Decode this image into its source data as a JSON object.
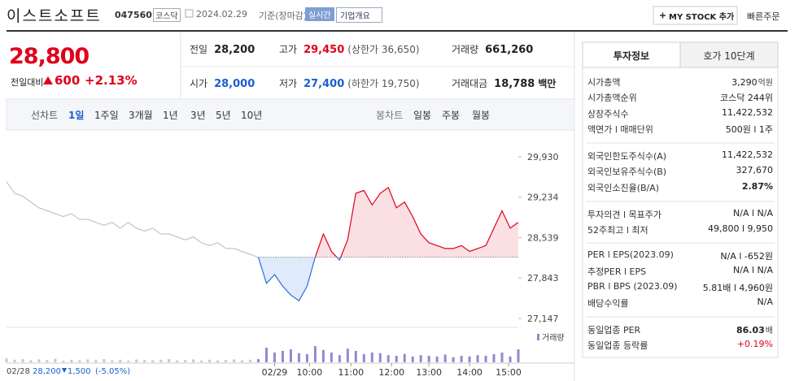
{
  "header": {
    "name": "이스트소프트",
    "code": "047560",
    "market": "코스닥",
    "date": "2024.02.29",
    "date_note": "기준(장마감)",
    "realtime": "실시간",
    "company_button": "기업개요",
    "mystock_button": "MY STOCK 추가",
    "quick_order": "빠른주문"
  },
  "price": {
    "current": "28,800",
    "change_label": "전일대비",
    "change": "600",
    "rate": "+2.13%"
  },
  "summary": [
    [
      {
        "label": "전일",
        "value": "28,200",
        "color": "#222"
      },
      {
        "label": "고가",
        "value": "29,450",
        "note": "(상한가 36,650)",
        "color": "#e0001b"
      },
      {
        "label": "거래량",
        "value": "661,260",
        "color": "#222"
      }
    ],
    [
      {
        "label": "시가",
        "value": "28,000",
        "color": "#1a5fd1"
      },
      {
        "label": "저가",
        "value": "27,400",
        "note": "(하한가 19,750)",
        "color": "#1a5fd1"
      },
      {
        "label": "거래대금",
        "value": "18,788",
        "unit": "백만",
        "color": "#222"
      }
    ]
  ],
  "tabs": {
    "line_label": "선차트",
    "line_periods": [
      "1일",
      "1주일",
      "3개월",
      "1년",
      "3년",
      "5년",
      "10년"
    ],
    "candle_label": "봉차트",
    "candle_periods": [
      "일봉",
      "주봉",
      "월봉"
    ]
  },
  "chart_data": {
    "type": "line",
    "ylim": [
      27035,
      30110
    ],
    "yticks": [
      {
        "value": 29930,
        "label": "29,930"
      },
      {
        "value": 29234,
        "label": "29,234"
      },
      {
        "value": 28539,
        "label": "28,539"
      },
      {
        "value": 27843,
        "label": "27,843"
      },
      {
        "value": 27147,
        "label": "27,147"
      }
    ],
    "xlim": [
      0,
      63
    ],
    "xticks": [
      {
        "value": 33,
        "label": "02/29"
      },
      {
        "value": 37.3,
        "label": "10:00"
      },
      {
        "value": 42.4,
        "label": "11:00"
      },
      {
        "value": 47.4,
        "label": "12:00"
      },
      {
        "value": 52,
        "label": "13:00"
      },
      {
        "value": 57,
        "label": "14:00"
      },
      {
        "value": 61.8,
        "label": "15:00"
      }
    ],
    "baseline": 28200,
    "series": [
      {
        "color": "#b9b9b9",
        "values": [
          29500,
          29300,
          29250,
          29150,
          29050,
          29000,
          28950,
          28900,
          28950,
          28850,
          28850,
          28800,
          28750,
          28800,
          28700,
          28800,
          28700,
          28650,
          28700,
          28600,
          28600,
          28550,
          28500,
          28550,
          28450,
          28400,
          28450,
          28350,
          28350,
          28300,
          28250,
          28200,
          null,
          null,
          null,
          null,
          null,
          null,
          null,
          null,
          null,
          null,
          null,
          null,
          null,
          null,
          null,
          null,
          null,
          null,
          null,
          null,
          null,
          null,
          null,
          null,
          null,
          null,
          null,
          null,
          null,
          null,
          null,
          null
        ]
      },
      {
        "color": "#e0001b",
        "below_color": "#2a6fdb",
        "values": [
          null,
          null,
          null,
          null,
          null,
          null,
          null,
          null,
          null,
          null,
          null,
          null,
          null,
          null,
          null,
          null,
          null,
          null,
          null,
          null,
          null,
          null,
          null,
          null,
          null,
          null,
          null,
          null,
          null,
          null,
          null,
          28200,
          27750,
          27900,
          27700,
          27550,
          27450,
          27700,
          28200,
          28600,
          28300,
          28150,
          28500,
          29300,
          29350,
          29100,
          29300,
          29400,
          29050,
          29150,
          28900,
          28600,
          28450,
          28400,
          28350,
          28350,
          28400,
          28300,
          28350,
          28400,
          28700,
          29000,
          28700,
          28800
        ]
      }
    ],
    "volume": {
      "name": "거래량",
      "color": "#9a86cf",
      "prev_color": "#c8c8c8",
      "ylim": [
        0,
        100
      ],
      "values": [
        12,
        8,
        10,
        6,
        9,
        7,
        11,
        5,
        8,
        6,
        9,
        7,
        10,
        6,
        8,
        5,
        9,
        7,
        6,
        8,
        10,
        6,
        7,
        9,
        5,
        8,
        6,
        7,
        9,
        6,
        8,
        10,
        45,
        30,
        35,
        40,
        28,
        25,
        50,
        38,
        30,
        22,
        42,
        35,
        25,
        30,
        28,
        22,
        20,
        26,
        18,
        22,
        20,
        18,
        24,
        16,
        20,
        18,
        22,
        20,
        25,
        30,
        18,
        40
      ]
    }
  },
  "previous_day": {
    "date": "02/28",
    "close": "28,200",
    "change": "1,500",
    "rate": "(-5.05%)"
  },
  "info": {
    "tabs": [
      "투자정보",
      "호가 10단계"
    ],
    "groups": [
      [
        {
          "label": "시가총액",
          "value": "3,290",
          "unit": "억원"
        },
        {
          "label": "시가총액순위",
          "value": "코스닥 244위"
        },
        {
          "label": "상장주식수",
          "value": "11,422,532"
        },
        {
          "label": "액면가 l 매매단위",
          "value": "500원 l 1주"
        }
      ],
      [
        {
          "label": "외국인한도주식수(A)",
          "value": "11,422,532"
        },
        {
          "label": "외국인보유주식수(B)",
          "value": "327,670"
        },
        {
          "label": "외국인소진율(B/A)",
          "value": "2.87%",
          "bold": true
        }
      ],
      [
        {
          "label": "투자의견 l 목표주가",
          "value": "N/A l N/A"
        },
        {
          "label": "52주최고 l 최저",
          "value": "49,800 l 9,950"
        }
      ],
      [
        {
          "label": "PER l EPS(2023.09)",
          "value": "N/A l -652원"
        },
        {
          "label": "추정PER l EPS",
          "value": "N/A l N/A"
        },
        {
          "label": "PBR l BPS (2023.09)",
          "value": "5.81배 l 4,960원"
        },
        {
          "label": "배당수익률",
          "value": "N/A"
        }
      ],
      [
        {
          "label": "동일업종 PER",
          "value": "86.03",
          "unit": "배",
          "bold": true
        },
        {
          "label": "동일업종 등락률",
          "value": "+0.19%",
          "color": "#e0001b"
        }
      ]
    ]
  }
}
